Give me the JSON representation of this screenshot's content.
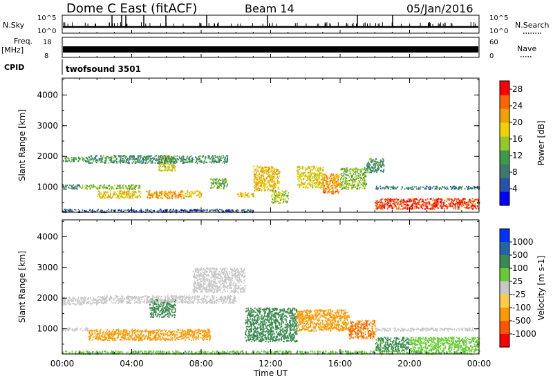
{
  "header": {
    "station": "Dome C East (fitACF)",
    "beam": "Beam 14",
    "date": "05/Jan/2016"
  },
  "top_panels": {
    "nsky": {
      "label": "N.Sky",
      "tick_high": "10^5",
      "tick_low": "10^0"
    },
    "nsearch": {
      "label": "N.Search",
      "tick_high": "10^5",
      "tick_low": "10^0"
    },
    "freq": {
      "label_line1": "Freq.",
      "label_line2": "[MHz]",
      "tick_high": "18",
      "tick_low": "8"
    },
    "nave": {
      "label": "Nave",
      "tick_high": "60",
      "tick_low": "0"
    },
    "cpid": {
      "label": "CPID",
      "value": "twofsound 3501"
    }
  },
  "chart_data": [
    {
      "type": "heatmap",
      "title": "Power",
      "xlabel": "Time UT",
      "ylabel": "Slant Range [km]",
      "x_ticks": [
        "00:00",
        "04:00",
        "08:00",
        "12:00",
        "16:00",
        "20:00",
        "00:00"
      ],
      "xlim_hours": [
        0,
        24
      ],
      "y_ticks": [
        "1000",
        "2000",
        "3000",
        "4000"
      ],
      "ylim_km": [
        180,
        4550
      ],
      "colorbar": {
        "label": "Power [dB]",
        "ticks": [
          "4",
          "8",
          "12",
          "16",
          "20",
          "24",
          "28"
        ],
        "range": [
          0,
          30
        ]
      },
      "regions": [
        {
          "t": [
            0.0,
            1.5
          ],
          "r": [
            1850,
            2000
          ],
          "val": 11
        },
        {
          "t": [
            0.0,
            1.0
          ],
          "r": [
            950,
            1100
          ],
          "val": 10
        },
        {
          "t": [
            0.0,
            11.0
          ],
          "r": [
            200,
            300
          ],
          "val": 6
        },
        {
          "t": [
            1.0,
            4.5
          ],
          "r": [
            950,
            1100
          ],
          "val": 14
        },
        {
          "t": [
            2.0,
            4.5
          ],
          "r": [
            650,
            900
          ],
          "val": 19
        },
        {
          "t": [
            4.8,
            7.0
          ],
          "r": [
            650,
            900
          ],
          "val": 22
        },
        {
          "t": [
            5.5,
            6.5
          ],
          "r": [
            1550,
            2050
          ],
          "val": 17
        },
        {
          "t": [
            7.0,
            8.0
          ],
          "r": [
            700,
            900
          ],
          "val": 19
        },
        {
          "t": [
            1.5,
            9.5
          ],
          "r": [
            1800,
            2050
          ],
          "val": 10
        },
        {
          "t": [
            8.5,
            9.5
          ],
          "r": [
            950,
            1300
          ],
          "val": 13
        },
        {
          "t": [
            10.0,
            11.0
          ],
          "r": [
            700,
            850
          ],
          "val": 20
        },
        {
          "t": [
            11.0,
            12.5
          ],
          "r": [
            900,
            1700
          ],
          "val": 20
        },
        {
          "t": [
            12.0,
            13.0
          ],
          "r": [
            500,
            900
          ],
          "val": 16
        },
        {
          "t": [
            13.5,
            15.0
          ],
          "r": [
            1000,
            1700
          ],
          "val": 18
        },
        {
          "t": [
            15.0,
            16.0
          ],
          "r": [
            800,
            1450
          ],
          "val": 23
        },
        {
          "t": [
            16.0,
            17.5
          ],
          "r": [
            950,
            1650
          ],
          "val": 14
        },
        {
          "t": [
            17.5,
            18.5
          ],
          "r": [
            1500,
            1950
          ],
          "val": 10
        },
        {
          "t": [
            18.0,
            24.0
          ],
          "r": [
            300,
            650
          ],
          "val": 27
        },
        {
          "t": [
            18.0,
            24.0
          ],
          "r": [
            950,
            1050
          ],
          "val": 8
        }
      ]
    },
    {
      "type": "heatmap",
      "title": "Velocity",
      "xlabel": "Time UT",
      "ylabel": "Slant Range [km]",
      "x_ticks": [
        "00:00",
        "04:00",
        "08:00",
        "12:00",
        "16:00",
        "20:00",
        "00:00"
      ],
      "xlim_hours": [
        0,
        24
      ],
      "y_ticks": [
        "1000",
        "2000",
        "3000",
        "4000"
      ],
      "ylim_km": [
        180,
        4550
      ],
      "colorbar": {
        "label": "Velocity [m s-1]",
        "ticks": [
          "1000",
          "500",
          "100",
          "25",
          "-25",
          "-100",
          "-500",
          "-1000"
        ]
      },
      "regions": [
        {
          "t": [
            0.0,
            2.0
          ],
          "r": [
            1800,
            2050
          ],
          "val": 0
        },
        {
          "t": [
            0.0,
            24.0
          ],
          "r": [
            200,
            300
          ],
          "val": 80
        },
        {
          "t": [
            0.0,
            1.5
          ],
          "r": [
            950,
            1050
          ],
          "val": 0
        },
        {
          "t": [
            1.5,
            8.5
          ],
          "r": [
            650,
            1000
          ],
          "val": -180
        },
        {
          "t": [
            5.0,
            6.5
          ],
          "r": [
            1400,
            2000
          ],
          "val": 350
        },
        {
          "t": [
            2.0,
            10.0
          ],
          "r": [
            1850,
            2100
          ],
          "val": 0
        },
        {
          "t": [
            7.5,
            10.5
          ],
          "r": [
            2200,
            3000
          ],
          "val": 0
        },
        {
          "t": [
            10.5,
            13.5
          ],
          "r": [
            600,
            1700
          ],
          "val": 300
        },
        {
          "t": [
            13.5,
            16.5
          ],
          "r": [
            950,
            1650
          ],
          "val": -200
        },
        {
          "t": [
            16.5,
            18.0
          ],
          "r": [
            700,
            1300
          ],
          "val": -500
        },
        {
          "t": [
            18.0,
            20.0
          ],
          "r": [
            300,
            750
          ],
          "val": 150
        },
        {
          "t": [
            20.0,
            24.0
          ],
          "r": [
            300,
            750
          ],
          "val": 60
        },
        {
          "t": [
            18.0,
            24.0
          ],
          "r": [
            950,
            1050
          ],
          "val": 0
        }
      ]
    }
  ],
  "colors": {
    "power_scale": [
      "#0000ff",
      "#2850b0",
      "#3c7a6e",
      "#3c9a4a",
      "#96c828",
      "#f0d200",
      "#f0a000",
      "#ff6400",
      "#ff0000"
    ],
    "velocity_scale": [
      "#0033ff",
      "#2266aa",
      "#3a8a50",
      "#66cc33",
      "#c8c8c8",
      "#ffcc44",
      "#ff9900",
      "#ff5500",
      "#ff0000"
    ]
  }
}
